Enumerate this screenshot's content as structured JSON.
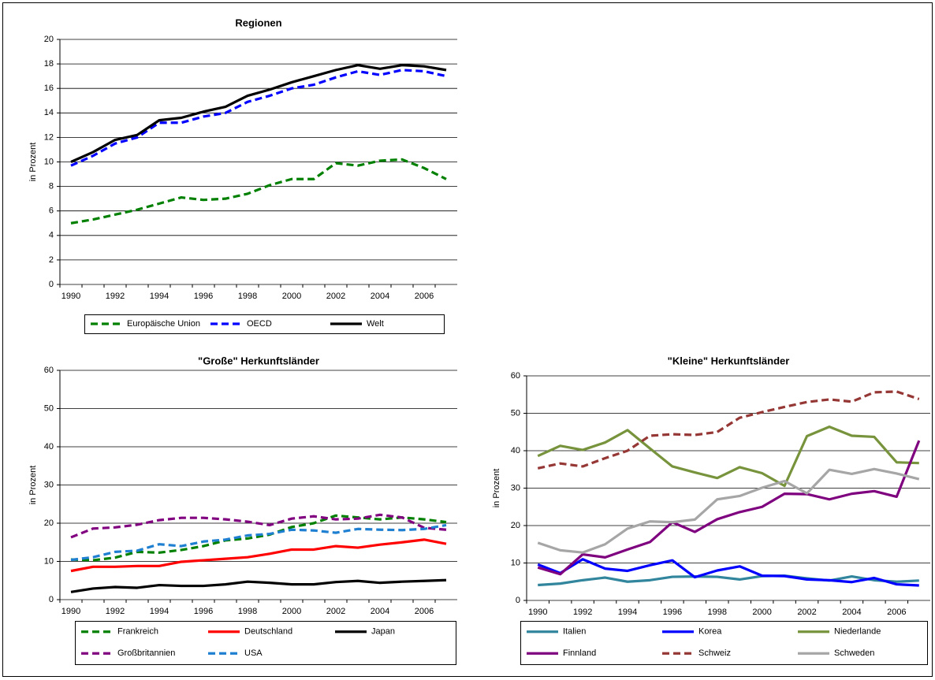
{
  "chart_data": [
    {
      "type": "line",
      "title": "Regionen",
      "ylabel": "in Prozent",
      "categories": [
        "1990",
        null,
        "1992",
        null,
        "1994",
        null,
        "1996",
        null,
        "1998",
        null,
        "2000",
        null,
        "2002",
        null,
        "2004",
        null,
        "2006",
        null
      ],
      "ylim": [
        0,
        20
      ],
      "yticks": [
        0,
        2,
        4,
        6,
        8,
        10,
        12,
        14,
        16,
        18,
        20
      ],
      "grid": true,
      "series": [
        {
          "name": "Europäische Union",
          "color": "#008000",
          "style": "dashed",
          "values": [
            5.0,
            5.3,
            5.7,
            6.1,
            6.6,
            7.1,
            6.9,
            7.0,
            7.4,
            8.1,
            8.6,
            8.6,
            9.9,
            9.7,
            10.1,
            10.2,
            9.5,
            8.6
          ]
        },
        {
          "name": "OECD",
          "color": "#0000ff",
          "style": "dashed",
          "values": [
            9.7,
            10.5,
            11.5,
            12.0,
            13.2,
            13.2,
            13.7,
            14.0,
            14.9,
            15.4,
            16.0,
            16.3,
            16.9,
            17.4,
            17.1,
            17.5,
            17.4,
            17.0
          ]
        },
        {
          "name": "Welt",
          "color": "#000000",
          "style": "solid",
          "values": [
            10.0,
            10.8,
            11.8,
            12.2,
            13.4,
            13.6,
            14.1,
            14.5,
            15.4,
            15.9,
            16.5,
            17.0,
            17.5,
            17.9,
            17.6,
            17.9,
            17.8,
            17.5
          ]
        }
      ]
    },
    {
      "type": "line",
      "title": "\"Große\" Herkunftsländer",
      "ylabel": "in Prozent",
      "categories": [
        "1990",
        null,
        "1992",
        null,
        "1994",
        null,
        "1996",
        null,
        "1998",
        null,
        "2000",
        null,
        "2002",
        null,
        "2004",
        null,
        "2006",
        null
      ],
      "ylim": [
        0,
        60
      ],
      "yticks": [
        0,
        10,
        20,
        30,
        40,
        50,
        60
      ],
      "grid": true,
      "series": [
        {
          "name": "Frankreich",
          "color": "#008000",
          "style": "dashed",
          "values": [
            10.5,
            10.3,
            11,
            12.5,
            12.3,
            13,
            14,
            15.5,
            16,
            17,
            19,
            20,
            22,
            21.5,
            21,
            21.5,
            21,
            20.3
          ]
        },
        {
          "name": "Deutschland",
          "color": "#ff0000",
          "style": "solid",
          "values": [
            7.5,
            8.6,
            8.6,
            8.8,
            8.8,
            9.9,
            10.3,
            10.7,
            11.1,
            12,
            13.1,
            13.1,
            14,
            13.6,
            14.4,
            15,
            15.7,
            14.6
          ]
        },
        {
          "name": "Japan",
          "color": "#000000",
          "style": "solid",
          "values": [
            2,
            2.9,
            3.3,
            3.1,
            3.8,
            3.6,
            3.6,
            4,
            4.7,
            4.4,
            4,
            4,
            4.6,
            4.9,
            4.4,
            4.7,
            4.9,
            5.1
          ]
        },
        {
          "name": "Großbritannien",
          "color": "#800080",
          "style": "dashed",
          "values": [
            16.3,
            18.6,
            18.9,
            19.6,
            20.8,
            21.4,
            21.4,
            21,
            20.4,
            19.5,
            21.2,
            21.8,
            21,
            21.2,
            22.2,
            21.5,
            18.8,
            18.3
          ]
        },
        {
          "name": "USA",
          "color": "#1f7fd0",
          "style": "dashed",
          "values": [
            10.4,
            11.1,
            12.5,
            12.8,
            14.5,
            14,
            15.2,
            15.7,
            16.8,
            17.2,
            18.3,
            18.1,
            17.5,
            18.5,
            18.3,
            18.2,
            18.5,
            19.5
          ]
        }
      ]
    },
    {
      "type": "line",
      "title": "\"Kleine\" Herkunftsländer",
      "ylabel": "in Prozent",
      "categories": [
        "1990",
        null,
        "1992",
        null,
        "1994",
        null,
        "1996",
        null,
        "1998",
        null,
        "2000",
        null,
        "2002",
        null,
        "2004",
        null,
        "2006",
        null
      ],
      "ylim": [
        0,
        60
      ],
      "yticks": [
        0,
        10,
        20,
        30,
        40,
        50,
        60
      ],
      "grid": true,
      "series": [
        {
          "name": "Italien",
          "color": "#31859c",
          "style": "solid",
          "values": [
            4.1,
            4.5,
            5.4,
            6.1,
            5,
            5.4,
            6.3,
            6.4,
            6.3,
            5.6,
            6.5,
            6.6,
            5.9,
            5.3,
            6.4,
            5.4,
            5,
            5.3
          ]
        },
        {
          "name": "Korea",
          "color": "#0000ff",
          "style": "solid",
          "values": [
            9.6,
            7.3,
            11,
            8.5,
            7.9,
            9.4,
            10.7,
            6.2,
            8,
            9.1,
            6.6,
            6.5,
            5.6,
            5.4,
            4.9,
            6,
            4.3,
            4
          ]
        },
        {
          "name": "Niederlande",
          "color": "#77933c",
          "style": "solid",
          "values": [
            38.6,
            41.3,
            40.2,
            42.2,
            45.5,
            40.6,
            35.8,
            34.2,
            32.7,
            35.6,
            34,
            30.6,
            43.9,
            46.4,
            44,
            43.7,
            36.9,
            36.7
          ]
        },
        {
          "name": "Finnland",
          "color": "#7f007f",
          "style": "solid",
          "values": [
            8.8,
            7,
            12.3,
            11.5,
            13.6,
            15.6,
            20.9,
            18.3,
            21.7,
            23.6,
            25,
            28.5,
            28.4,
            27,
            28.5,
            29.2,
            27.7,
            42.7
          ]
        },
        {
          "name": "Schweiz",
          "color": "#953735",
          "style": "dashed",
          "values": [
            35.3,
            36.6,
            35.8,
            38,
            40,
            44,
            44.4,
            44.2,
            45,
            48.8,
            50.3,
            51.7,
            53,
            53.7,
            53.1,
            55.6,
            55.8,
            53.8
          ]
        },
        {
          "name": "Schweden",
          "color": "#a6a6a6",
          "style": "solid",
          "values": [
            15.4,
            13.4,
            12.8,
            15,
            19.2,
            21.1,
            20.9,
            21.6,
            27,
            27.9,
            30.1,
            31.9,
            28.6,
            34.9,
            33.8,
            35.1,
            33.9,
            32.4
          ]
        }
      ]
    }
  ]
}
